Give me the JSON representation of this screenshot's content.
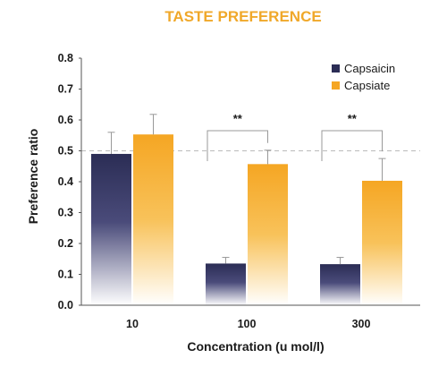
{
  "chart_data": {
    "type": "bar",
    "title": "TASTE PREFERENCE",
    "xlabel": "Concentration (u mol/l)",
    "ylabel": "Preference ratio",
    "categories": [
      "10",
      "100",
      "300"
    ],
    "ylim": [
      0,
      0.8
    ],
    "yticks": [
      "0.0",
      "0.1",
      "0.2",
      "0.3",
      "0.4",
      "0.5",
      "0.6",
      "0.7",
      "0.8"
    ],
    "reference_line": 0.5,
    "legend_position": "top-right",
    "series": [
      {
        "name": "Capsaicin",
        "color": "#2b2d55",
        "values": [
          0.49,
          0.135,
          0.133
        ],
        "errors": [
          0.07,
          0.02,
          0.022
        ]
      },
      {
        "name": "Capsiate",
        "color": "#f5a623",
        "values": [
          0.553,
          0.457,
          0.403
        ],
        "errors": [
          0.065,
          0.045,
          0.072
        ]
      }
    ],
    "annotations": [
      {
        "category": "100",
        "text": "**"
      },
      {
        "category": "300",
        "text": "**"
      }
    ]
  }
}
